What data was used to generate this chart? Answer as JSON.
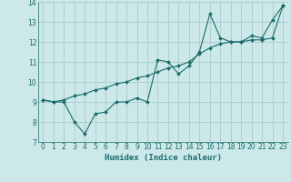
{
  "xlabel": "Humidex (Indice chaleur)",
  "bg_color": "#cce8e8",
  "grid_color": "#aacccc",
  "line_color": "#1a6b6b",
  "xlim": [
    -0.5,
    23.5
  ],
  "ylim": [
    7,
    14
  ],
  "yticks": [
    7,
    8,
    9,
    10,
    11,
    12,
    13,
    14
  ],
  "xticks": [
    0,
    1,
    2,
    3,
    4,
    5,
    6,
    7,
    8,
    9,
    10,
    11,
    12,
    13,
    14,
    15,
    16,
    17,
    18,
    19,
    20,
    21,
    22,
    23
  ],
  "line1_x": [
    0,
    1,
    2,
    3,
    4,
    5,
    6,
    7,
    8,
    9,
    10,
    11,
    12,
    13,
    14,
    15,
    16,
    17,
    18,
    19,
    20,
    21,
    22,
    23
  ],
  "line1_y": [
    9.1,
    9.0,
    9.0,
    8.0,
    7.4,
    8.4,
    8.5,
    9.0,
    9.0,
    9.2,
    9.0,
    11.1,
    11.0,
    10.4,
    10.8,
    11.5,
    13.4,
    12.2,
    12.0,
    12.0,
    12.3,
    12.2,
    13.1,
    13.8
  ],
  "line2_x": [
    0,
    1,
    2,
    3,
    4,
    5,
    6,
    7,
    8,
    9,
    10,
    11,
    12,
    13,
    14,
    15,
    16,
    17,
    18,
    19,
    20,
    21,
    22,
    23
  ],
  "line2_y": [
    9.1,
    9.0,
    9.1,
    9.3,
    9.4,
    9.6,
    9.7,
    9.9,
    10.0,
    10.2,
    10.3,
    10.5,
    10.7,
    10.8,
    11.0,
    11.4,
    11.7,
    11.9,
    12.0,
    12.0,
    12.1,
    12.1,
    12.2,
    13.8
  ],
  "xlabel_fontsize": 6.5,
  "tick_fontsize": 5.5,
  "marker_size": 2.0,
  "linewidth": 0.8
}
